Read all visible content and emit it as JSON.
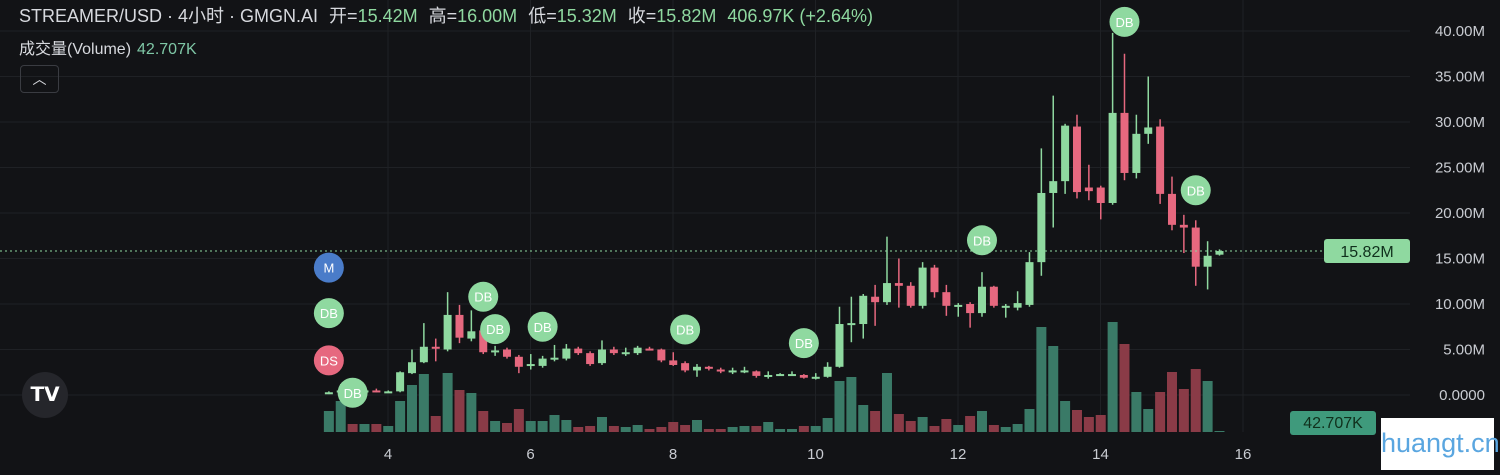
{
  "header": {
    "symbol": "STREAMER/USD · 4小时 · GMGN.AI",
    "open_label": "开=",
    "open": "15.42M",
    "high_label": "高=",
    "high": "16.00M",
    "low_label": "低=",
    "low": "15.32M",
    "close_label": "收=",
    "close": "15.82M",
    "change": "406.97K (+2.64%)"
  },
  "volume_legend": {
    "label": "成交量(Volume)",
    "value": "42.707K"
  },
  "collapse_icon": "chevron-up-icon",
  "logo": "TV",
  "watermark": "huangt.cn",
  "colors": {
    "up": "#8fd9a0",
    "down": "#e6687f",
    "vol_up": "#3a7a67",
    "vol_down": "#8a3b47",
    "background": "#121316"
  },
  "chart_data": {
    "type": "candlestick",
    "x_ticks": [
      "4",
      "6",
      "8",
      "10",
      "12",
      "14",
      "16"
    ],
    "x_tick_values": [
      4,
      6,
      8,
      10,
      12,
      14,
      16
    ],
    "y_ticks": [
      "0.0000",
      "5.00M",
      "10.00M",
      "15.00M",
      "20.00M",
      "25.00M",
      "30.00M",
      "35.00M",
      "40.00M"
    ],
    "y_tick_values": [
      0,
      5,
      10,
      15,
      20,
      25,
      30,
      35,
      40
    ],
    "ylim_millions": [
      0,
      40
    ],
    "grid": true,
    "last_price_label": "15.82M",
    "last_price": 15.82,
    "last_volume_label": "42.707K",
    "first_candle_x": 3.17,
    "candles_per_unit": 6,
    "ohlc_millions": [
      [
        0.1,
        0.4,
        0.1,
        0.3
      ],
      [
        0.3,
        1.2,
        0.2,
        0.5
      ],
      [
        0.4,
        0.5,
        0.2,
        0.3
      ],
      [
        0.3,
        0.6,
        0.2,
        0.5
      ],
      [
        0.5,
        0.7,
        0.3,
        0.4
      ],
      [
        0.4,
        0.5,
        0.3,
        0.4
      ],
      [
        0.4,
        2.6,
        0.3,
        2.5
      ],
      [
        2.4,
        5.0,
        2.3,
        3.6
      ],
      [
        3.6,
        7.9,
        3.5,
        5.3
      ],
      [
        5.3,
        6.2,
        3.7,
        5.1
      ],
      [
        5.0,
        11.3,
        4.8,
        8.8
      ],
      [
        8.8,
        9.9,
        5.7,
        6.3
      ],
      [
        6.2,
        9.3,
        5.9,
        7.0
      ],
      [
        7.1,
        7.3,
        4.5,
        4.7
      ],
      [
        4.8,
        5.4,
        4.3,
        4.9
      ],
      [
        5.0,
        5.2,
        4.0,
        4.2
      ],
      [
        4.2,
        4.4,
        2.4,
        3.1
      ],
      [
        3.3,
        4.5,
        2.8,
        3.4
      ],
      [
        3.2,
        4.3,
        3.0,
        4.0
      ],
      [
        4.0,
        5.5,
        3.7,
        4.1
      ],
      [
        4.0,
        5.6,
        3.8,
        5.1
      ],
      [
        5.1,
        5.3,
        4.4,
        4.6
      ],
      [
        4.6,
        4.8,
        3.2,
        3.4
      ],
      [
        3.5,
        6.0,
        3.3,
        5.0
      ],
      [
        5.0,
        5.3,
        4.4,
        4.6
      ],
      [
        4.6,
        5.2,
        4.3,
        4.7
      ],
      [
        4.6,
        5.4,
        4.4,
        5.2
      ],
      [
        5.1,
        5.3,
        4.9,
        5.0
      ],
      [
        5.0,
        5.1,
        3.6,
        3.8
      ],
      [
        3.8,
        4.7,
        3.2,
        3.3
      ],
      [
        3.5,
        3.7,
        2.5,
        2.7
      ],
      [
        2.7,
        3.4,
        2.0,
        3.1
      ],
      [
        3.1,
        3.2,
        2.7,
        2.9
      ],
      [
        2.8,
        3.0,
        2.4,
        2.6
      ],
      [
        2.6,
        3.0,
        2.3,
        2.7
      ],
      [
        2.7,
        3.1,
        2.4,
        2.7
      ],
      [
        2.6,
        2.7,
        1.9,
        2.1
      ],
      [
        2.1,
        2.6,
        1.8,
        2.2
      ],
      [
        2.2,
        2.4,
        2.1,
        2.3
      ],
      [
        2.2,
        2.6,
        2.1,
        2.3
      ],
      [
        2.2,
        2.3,
        1.8,
        1.9
      ],
      [
        1.9,
        2.4,
        1.7,
        2.0
      ],
      [
        2.0,
        3.6,
        1.9,
        3.1
      ],
      [
        3.1,
        9.7,
        3.0,
        7.8
      ],
      [
        7.9,
        10.8,
        5.8,
        7.9
      ],
      [
        7.8,
        11.1,
        6.2,
        10.9
      ],
      [
        10.8,
        12.1,
        7.6,
        10.2
      ],
      [
        10.2,
        17.4,
        9.9,
        12.3
      ],
      [
        12.3,
        15.0,
        9.6,
        12.0
      ],
      [
        12.0,
        12.4,
        9.6,
        9.8
      ],
      [
        9.8,
        14.6,
        9.5,
        14.0
      ],
      [
        14.0,
        14.3,
        10.7,
        11.3
      ],
      [
        11.3,
        12.1,
        8.7,
        9.8
      ],
      [
        9.9,
        10.1,
        8.6,
        9.9
      ],
      [
        10.0,
        10.2,
        7.4,
        9.0
      ],
      [
        9.0,
        13.5,
        8.6,
        11.9
      ],
      [
        11.9,
        12.0,
        9.6,
        9.8
      ],
      [
        9.8,
        10.0,
        8.5,
        9.8
      ],
      [
        9.6,
        11.4,
        9.3,
        10.1
      ],
      [
        9.9,
        15.7,
        9.7,
        14.6
      ],
      [
        14.6,
        27.1,
        13.1,
        22.2
      ],
      [
        22.2,
        32.9,
        18.4,
        23.5
      ],
      [
        23.5,
        29.8,
        22.1,
        29.6
      ],
      [
        29.5,
        30.8,
        21.6,
        22.3
      ],
      [
        22.8,
        25.3,
        21.4,
        22.4
      ],
      [
        22.8,
        23.0,
        19.3,
        21.1
      ],
      [
        21.1,
        39.8,
        20.9,
        31.0
      ],
      [
        31.0,
        37.5,
        23.6,
        24.4
      ],
      [
        24.4,
        30.8,
        23.8,
        28.7
      ],
      [
        28.7,
        35.0,
        27.6,
        29.4
      ],
      [
        29.5,
        30.3,
        21.0,
        22.1
      ],
      [
        22.1,
        24.0,
        18.1,
        18.7
      ],
      [
        18.7,
        19.8,
        15.6,
        18.4
      ],
      [
        18.4,
        19.2,
        12.0,
        14.1
      ],
      [
        14.1,
        16.9,
        11.6,
        15.3
      ],
      [
        15.42,
        16.0,
        15.32,
        15.82
      ]
    ],
    "volume_relative": [
      21,
      31,
      8,
      8,
      8,
      6,
      31,
      47,
      58,
      16,
      59,
      42,
      39,
      21,
      11,
      9,
      23,
      11,
      11,
      17,
      12,
      5,
      6,
      15,
      6,
      5,
      7,
      3,
      5,
      10,
      7,
      12,
      3,
      3,
      5,
      6,
      6,
      10,
      3,
      3,
      6,
      6,
      14,
      51,
      55,
      27,
      21,
      59,
      18,
      11,
      15,
      6,
      13,
      7,
      16,
      21,
      7,
      5,
      8,
      23,
      105,
      86,
      31,
      22,
      15,
      17,
      110,
      88,
      40,
      23,
      40,
      60,
      43,
      63,
      51,
      1
    ],
    "markers": [
      {
        "label": "M",
        "candle": 0,
        "price": 14.0,
        "color": "#4a7cc9"
      },
      {
        "label": "DB",
        "candle": 0,
        "price": 9.0,
        "color": "#8fd9a0"
      },
      {
        "label": "DS",
        "candle": 0,
        "price": 3.8,
        "color": "#e6687f"
      },
      {
        "label": "DB",
        "candle": 2,
        "price": 4.2,
        "color": "#8fd9a0"
      },
      {
        "label": "DB",
        "candle": 13,
        "price": 10.8,
        "color": "#8fd9a0"
      },
      {
        "label": "DB",
        "candle": 14,
        "price": 9.0,
        "color": "#8fd9a0"
      },
      {
        "label": "DB",
        "candle": 18,
        "price": 7.5,
        "color": "#8fd9a0"
      },
      {
        "label": "DB",
        "candle": 30,
        "price": 7.2,
        "color": "#8fd9a0"
      },
      {
        "label": "DB",
        "candle": 40,
        "price": 5.7,
        "color": "#8fd9a0"
      },
      {
        "label": "DB",
        "candle": 55,
        "price": 17.0,
        "color": "#8fd9a0"
      },
      {
        "label": "DB",
        "candle": 67,
        "price": 41.0,
        "color": "#8fd9a0"
      },
      {
        "label": "DB",
        "candle": 73,
        "price": 22.5,
        "color": "#8fd9a0"
      }
    ]
  }
}
